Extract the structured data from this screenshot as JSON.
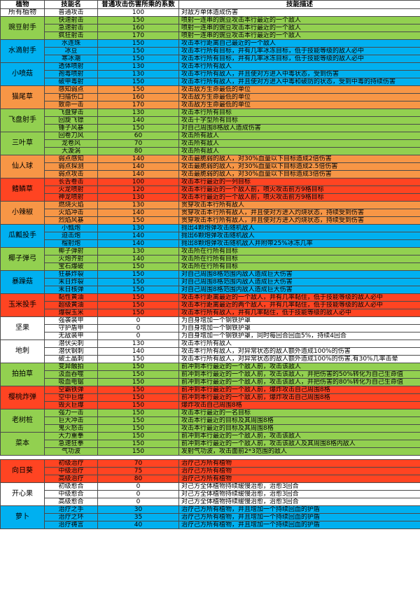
{
  "headers": [
    "植物",
    "技能名",
    "普通攻击伤害所乘的系数",
    "技能描述"
  ],
  "colors": {
    "white": "#ffffff",
    "green": "#92d050",
    "blue": "#00b0f0",
    "orange": "#f79646",
    "red": "#ff4422"
  },
  "groups": [
    {
      "plant": "所有植物",
      "color": "white",
      "rows": [
        {
          "skill": "普通攻击",
          "coef": "100",
          "desc": "对敌方单体造成伤害"
        }
      ]
    },
    {
      "plant": "豌豆射手",
      "color": "green",
      "rows": [
        {
          "skill": "快速射击",
          "coef": "150",
          "desc": "喷射一连串的豌豆攻击本行最近的一个敌人"
        },
        {
          "skill": "急速射击",
          "coef": "160",
          "desc": "喷射一连串的豌豆攻击本行最近的一个敌人"
        },
        {
          "skill": "疯狂射击",
          "coef": "170",
          "desc": "喷射一连串的豌豆攻击本行最近的一个敌人"
        }
      ]
    },
    {
      "plant": "水滴射手",
      "color": "blue",
      "rows": [
        {
          "skill": "水连珠",
          "coef": "150",
          "desc": "攻击本行距离自己最近的一个敌人"
        },
        {
          "skill": "冰豆",
          "coef": "150",
          "desc": "攻击本行所有目标，并有几率冰冻目标，低于技能等级的敌人必中"
        },
        {
          "skill": "寒冰潮",
          "coef": "150",
          "desc": "攻击本行所有目标，并有几率冰冻目标，低于技能等级的敌人必中"
        }
      ]
    },
    {
      "plant": "小喷菇",
      "color": "blue",
      "rows": [
        {
          "skill": "透体喷射",
          "coef": "130",
          "desc": "攻击本行所有敌人"
        },
        {
          "skill": "孢毒喷射",
          "coef": "130",
          "desc": "攻击本行所有敌人，并且使对方进入中毒状态，受到伤害"
        },
        {
          "skill": "破甲毒射",
          "coef": "150",
          "desc": "攻击本行所有敌人，并且使对方进入中毒和破防的状态，受到中毒的持续伤害"
        }
      ]
    },
    {
      "plant": "猫尾草",
      "color": "orange",
      "rows": [
        {
          "skill": "感知弱点",
          "coef": "150",
          "desc": "攻击敌方生命最低的单位"
        },
        {
          "skill": "扫描伤口",
          "coef": "160",
          "desc": "攻击敌方生命最低的单位"
        },
        {
          "skill": "致命一击",
          "coef": "170",
          "desc": "攻击敌方生命最低的单位"
        }
      ]
    },
    {
      "plant": "飞盘射手",
      "color": "green",
      "rows": [
        {
          "skill": "飞盘穿击",
          "coef": "130",
          "desc": "攻击本行所有目标"
        },
        {
          "skill": "回旋飞镖",
          "coef": "140",
          "desc": "攻击十字型所有目标"
        },
        {
          "skill": "锤子风暴",
          "coef": "150",
          "desc": "对自己周围8格敌人造成伤害"
        }
      ]
    },
    {
      "plant": "三叶草",
      "color": "green",
      "rows": [
        {
          "skill": "回卷刀风",
          "coef": "60",
          "desc": "攻击所有敌人"
        },
        {
          "skill": "龙卷风",
          "coef": "70",
          "desc": "攻击所有敌人"
        },
        {
          "skill": "大漩涡",
          "coef": "80",
          "desc": "攻击所有敌人"
        }
      ]
    },
    {
      "plant": "仙人球",
      "color": "orange",
      "rows": [
        {
          "skill": "弱点感知",
          "coef": "140",
          "desc": "攻击最脆弱的敌人，对30%血量以下目标造成2倍伤害"
        },
        {
          "skill": "弱点探测",
          "coef": "140",
          "desc": "攻击最脆弱的敌人，对30%血量以下目标造成2.5倍伤害"
        },
        {
          "skill": "弱点攻击",
          "coef": "140",
          "desc": "攻击最脆弱的敌人，对30%血量以下目标造成3倍伤害"
        }
      ]
    },
    {
      "plant": "鳍鳞草",
      "color": "red",
      "rows": [
        {
          "skill": "长舌卷击",
          "coef": "100",
          "desc": "攻击本行最近的一列目标"
        },
        {
          "skill": "火龙喷射",
          "coef": "120",
          "desc": "攻击本行最近的一个敌人前，喷火攻击前方9格目标"
        },
        {
          "skill": "神龙喷射",
          "coef": "130",
          "desc": "攻击本行最近的一个敌人前，喷火攻击前方9格目标"
        }
      ]
    },
    {
      "plant": "小辣椒",
      "color": "orange",
      "rows": [
        {
          "skill": "燃烧火焰",
          "coef": "130",
          "desc": "贯穿攻击本行所有敌人"
        },
        {
          "skill": "火焰冲击",
          "coef": "140",
          "desc": "贯穿攻击本行所有敌人，并且使对方进入灼烧状态，持续受到伤害"
        },
        {
          "skill": "烈焰风暴",
          "coef": "150",
          "desc": "贯穿攻击本行所有敌人，并且使对方进入灼烧状态，持续受到伤害"
        }
      ]
    },
    {
      "plant": "瓜瓤投手",
      "color": "blue",
      "rows": [
        {
          "skill": "小瓢炮",
          "coef": "130",
          "desc": "抛出4颗炮弹攻击随机敌人"
        },
        {
          "skill": "迫击炮",
          "coef": "140",
          "desc": "抛出6颗炮弹攻击随机敌人"
        },
        {
          "skill": "榴射炮",
          "coef": "140",
          "desc": "抛出8颗炮弹攻击随机敌人并附带25%冰冻几率"
        }
      ]
    },
    {
      "plant": "椰子弹弓",
      "color": "green",
      "rows": [
        {
          "skill": "椰子弹射",
          "coef": "130",
          "desc": "攻击所在行所有目标"
        },
        {
          "skill": "火炮齐射",
          "coef": "140",
          "desc": "攻击所在行所有目标"
        },
        {
          "skill": "宝石爆破",
          "coef": "150",
          "desc": "攻击所在行所有目标"
        }
      ]
    },
    {
      "plant": "暴躁菇",
      "color": "blue",
      "rows": [
        {
          "skill": "狂暴炸裂",
          "coef": "150",
          "desc": "对自己周围8格范围内敌人造成巨大伤害"
        },
        {
          "skill": "末日炸裂",
          "coef": "150",
          "desc": "对自己周围8格范围内敌人造成巨大伤害"
        },
        {
          "skill": "末日核弹",
          "coef": "150",
          "desc": "对自己周围8格范围内敌人造成巨大伤害"
        }
      ]
    },
    {
      "plant": "玉米投手",
      "color": "red",
      "rows": [
        {
          "skill": "黏性黄油",
          "coef": "150",
          "desc": "攻击本行距离最近的一个敌人，并有几率黏住，低于技能等级的敌人必中"
        },
        {
          "skill": "超级黄油",
          "coef": "150",
          "desc": "攻击本行距离最近的两个敌人，并有几率黏住，低于技能等级的敌人必中"
        },
        {
          "skill": "爆裂玉米",
          "coef": "150",
          "desc": "攻击本行所有敌人，并有几率黏住，低于技能等级的敌人必中"
        }
      ]
    },
    {
      "plant": "坚果",
      "color": "white",
      "rows": [
        {
          "skill": "强袭装甲",
          "coef": "0",
          "desc": "为自身增加一个钢铁护罩"
        },
        {
          "skill": "守护盾甲",
          "coef": "0",
          "desc": "为自身增加一个钢铁护罩"
        },
        {
          "skill": "无敌装甲",
          "coef": "0",
          "desc": "为自身增加一个钢铁护罩，同时每回合回血5%，持续4回合"
        }
      ]
    },
    {
      "plant": "地刺",
      "color": "white",
      "rows": [
        {
          "skill": "潜伏尖刺",
          "coef": "130",
          "desc": "攻击本行所有敌人"
        },
        {
          "skill": "潜伏钢刺",
          "coef": "140",
          "desc": "攻击本行所有敌人，对异常状态的敌人额外造成100%的伤害"
        },
        {
          "skill": "破土晶刺",
          "coef": "150",
          "desc": "攻击本行所有敌人，对异常状态的敌人额外造成100%的伤害,有30%几率击晕"
        }
      ]
    },
    {
      "plant": "拍拍草",
      "color": "green",
      "rows": [
        {
          "skill": "变异触拍",
          "coef": "150",
          "desc": "前冲到本行最近的一个敌人前，攻击该敌人"
        },
        {
          "skill": "汲血吞噬",
          "coef": "150",
          "desc": "前冲到本行最近的一个敌人前，攻击该敌人，并把伤害的50%转化为自己生命值"
        },
        {
          "skill": "吸血电锯",
          "coef": "150",
          "desc": "前冲到本行最近的一个敌人前，攻击该敌人，并把伤害的80%转化为自己生命值"
        }
      ]
    },
    {
      "plant": "樱桃炸弹",
      "color": "red",
      "rows": [
        {
          "skill": "空霸铁弹",
          "coef": "150",
          "desc": "前冲到本行最近的一个敌人前，爆炸攻击自己周围8格"
        },
        {
          "skill": "空中巨爆",
          "coef": "150",
          "desc": "前冲到本行最近的一个敌人前，爆炸攻击自己周围8格"
        },
        {
          "skill": "毁灭巨爆",
          "coef": "150",
          "desc": "爆炸攻击自己周围8格"
        }
      ]
    },
    {
      "plant": "老树桩",
      "color": "green",
      "rows": [
        {
          "skill": "强力一击",
          "coef": "150",
          "desc": "攻击本行最近的一名目标"
        },
        {
          "skill": "巨大冲击",
          "coef": "150",
          "desc": "攻击本行最近的目标及其周围8格"
        },
        {
          "skill": "鬼火怒击",
          "coef": "150",
          "desc": "攻击本行最近的目标及其周围8格"
        }
      ]
    },
    {
      "plant": "菜本",
      "color": "green",
      "rows": [
        {
          "skill": "大力重拳",
          "coef": "150",
          "desc": "前冲到本行最近的一个敌人前，攻击该敌人"
        },
        {
          "skill": "急速狂拳",
          "coef": "150",
          "desc": "前冲到本行最近的一个敌人前，攻击该敌人及其周围8格内敌人"
        },
        {
          "skill": "气功波",
          "coef": "150",
          "desc": "发射气功波，攻击面前2*3范围的敌人"
        }
      ]
    },
    {
      "gap": true
    },
    {
      "plant": "向日葵",
      "color": "red",
      "rows": [
        {
          "skill": "初级治疗",
          "coef": "70",
          "desc": "治疗己方所有植物"
        },
        {
          "skill": "中级治疗",
          "coef": "75",
          "desc": "治疗己方所有植物"
        },
        {
          "skill": "高级治疗",
          "coef": "80",
          "desc": "治疗己方所有植物"
        }
      ]
    },
    {
      "plant": "开心果",
      "color": "white",
      "rows": [
        {
          "skill": "初级愈合",
          "coef": "0",
          "desc": "对己方全体植物持续缓慢治愈，治愈3回合"
        },
        {
          "skill": "中级愈合",
          "coef": "0",
          "desc": "对己方全体植物持续缓慢治愈，治愈3回合"
        },
        {
          "skill": "高级愈合",
          "coef": "0",
          "desc": "对己方全体植物持续缓慢治愈，治愈3回合"
        }
      ]
    },
    {
      "plant": "萝卜",
      "color": "blue",
      "rows": [
        {
          "skill": "治疗之手",
          "coef": "30",
          "desc": "治疗己方所有植物，并且增加一个持续回血的护盾"
        },
        {
          "skill": "治疗之环",
          "coef": "35",
          "desc": "治疗己方所有植物，并且增加一个持续回血的护盾"
        },
        {
          "skill": "治疗祷言",
          "coef": "40",
          "desc": "治疗己方所有植物，并且增加一个持续回血的护盾"
        }
      ]
    }
  ]
}
